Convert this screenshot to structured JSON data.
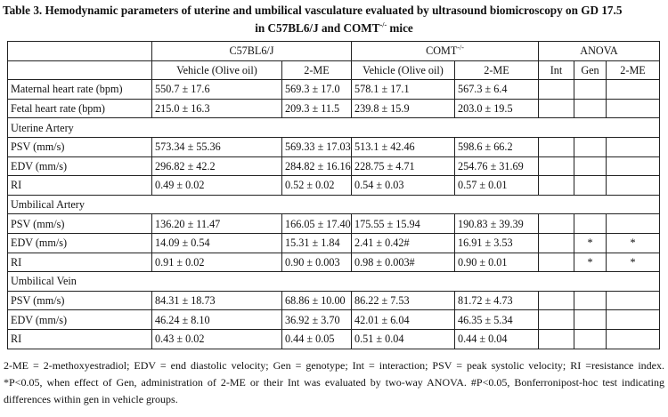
{
  "caption": {
    "line1": "Table 3. Hemodynamic parameters of uterine and umbilical vasculature evaluated by ultrasound biomicroscopy on GD 17.5",
    "line2_a": "in C57BL6/J and COMT",
    "line2_sup": "-/-",
    "line2_b": " mice"
  },
  "header": {
    "group1": "C57BL6/J",
    "group2": "COMT",
    "group2_sup": "-/-",
    "group3": "ANOVA",
    "sub": [
      "Vehicle (Olive oil)",
      "2-ME",
      "Vehicle (Olive oil)",
      "2-ME",
      "Int",
      "Gen",
      "2-ME"
    ]
  },
  "rows": [
    {
      "type": "data",
      "label": "Maternal heart rate (bpm)",
      "cells": [
        "550.7 ± 17.6",
        "569.3 ± 17.0",
        "578.1  ± 17.1",
        "567.3 ± 6.4",
        "",
        "",
        ""
      ]
    },
    {
      "type": "data",
      "label": "Fetal heart rate (bpm)",
      "cells": [
        "215.0 ± 16.3",
        "209.3 ± 11.5",
        "239.8 ± 15.9",
        "203.0 ± 19.5",
        "",
        "",
        ""
      ]
    },
    {
      "type": "section",
      "label": "Uterine Artery"
    },
    {
      "type": "data",
      "label": "PSV (mm/s)",
      "cells": [
        "573.34 ± 55.36",
        "569.33 ± 17.03",
        "513.1 ± 42.46",
        "598.6 ± 66.2",
        "",
        "",
        ""
      ]
    },
    {
      "type": "data",
      "label": "EDV (mm/s)",
      "cells": [
        "296.82 ± 42.2",
        "284.82 ± 16.16",
        "228.75 ± 4.71",
        "254.76 ± 31.69",
        "",
        "",
        ""
      ]
    },
    {
      "type": "data",
      "label": "RI",
      "cells": [
        "0.49 ± 0.02",
        "0.52 ± 0.02",
        "0.54 ± 0.03",
        "0.57 ± 0.01",
        "",
        "",
        ""
      ]
    },
    {
      "type": "section",
      "label": "Umbilical Artery"
    },
    {
      "type": "data",
      "label": "PSV (mm/s)",
      "cells": [
        "136.20 ± 11.47",
        "166.05 ± 17.40",
        "175.55 ± 15.94",
        "190.83 ± 39.39",
        "",
        "",
        ""
      ]
    },
    {
      "type": "data",
      "label": "EDV (mm/s)",
      "cells": [
        "14.09 ± 0.54",
        "15.31 ± 1.84",
        "2.41 ± 0.42#",
        "16.91 ± 3.53",
        "",
        "*",
        "*"
      ]
    },
    {
      "type": "data",
      "label": "RI",
      "cells": [
        "0.91 ± 0.02",
        "0.90 ± 0.003",
        "0.98 ± 0.003#",
        "0.90 ± 0.01",
        "",
        "*",
        "*"
      ]
    },
    {
      "type": "section",
      "label": "Umbilical Vein"
    },
    {
      "type": "data",
      "label": "PSV (mm/s)",
      "cells": [
        "84.31 ± 18.73",
        "68.86 ± 10.00",
        "86.22 ± 7.53",
        "81.72 ± 4.73",
        "",
        "",
        ""
      ]
    },
    {
      "type": "data",
      "label": "EDV (mm/s)",
      "cells": [
        "46.24 ± 8.10",
        "36.92 ± 3.70",
        "42.01 ± 6.04",
        "46.35 ± 5.34",
        "",
        "",
        ""
      ]
    },
    {
      "type": "data",
      "label": "RI",
      "cells": [
        "0.43 ± 0.02",
        "0.44 ± 0.05",
        "0.51 ± 0.04",
        "0.44 ± 0.04",
        "",
        "",
        ""
      ]
    }
  ],
  "footnote": "2-ME = 2-methoxyestradiol; EDV = end diastolic velocity; Gen = genotype; Int = interaction; PSV = peak systolic velocity;  RI =resistance index. *P<0.05, when effect of Gen, administration of 2-ME or their Int was evaluated by two-way ANOVA. #P<0.05, Bonferronipost-hoc test indicating differences within gen in vehicle groups."
}
